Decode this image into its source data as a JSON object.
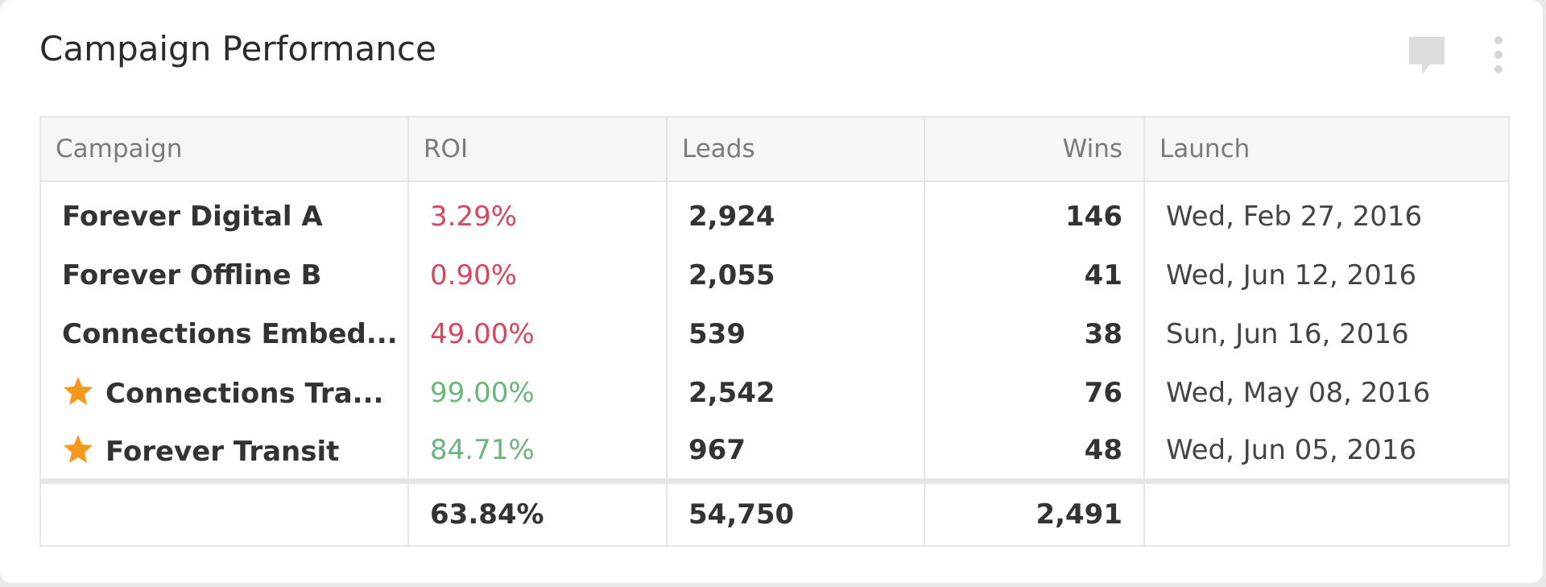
{
  "header": {
    "title": "Campaign Performance"
  },
  "table": {
    "columns": [
      "Campaign",
      "ROI",
      "Leads",
      "Wins",
      "Launch"
    ],
    "rows": [
      [
        "Forever Digital A",
        "3.29%",
        "2,924",
        "146",
        "Wed, Feb 27, 2016"
      ],
      [
        "Forever Offline B",
        "0.90%",
        "2,055",
        "41",
        "Wed, Jun 12, 2016"
      ],
      [
        "Connections Embed...",
        "49.00%",
        "539",
        "38",
        "Sun, Jun 16, 2016"
      ],
      [
        "Connections Tra...",
        "99.00%",
        "2,542",
        "76",
        "Wed, May 08, 2016"
      ],
      [
        "Forever Transit",
        "84.71%",
        "967",
        "48",
        "Wed, Jun 05, 2016"
      ]
    ],
    "totals": [
      "63.84%",
      "54,750",
      "2,491"
    ]
  }
}
